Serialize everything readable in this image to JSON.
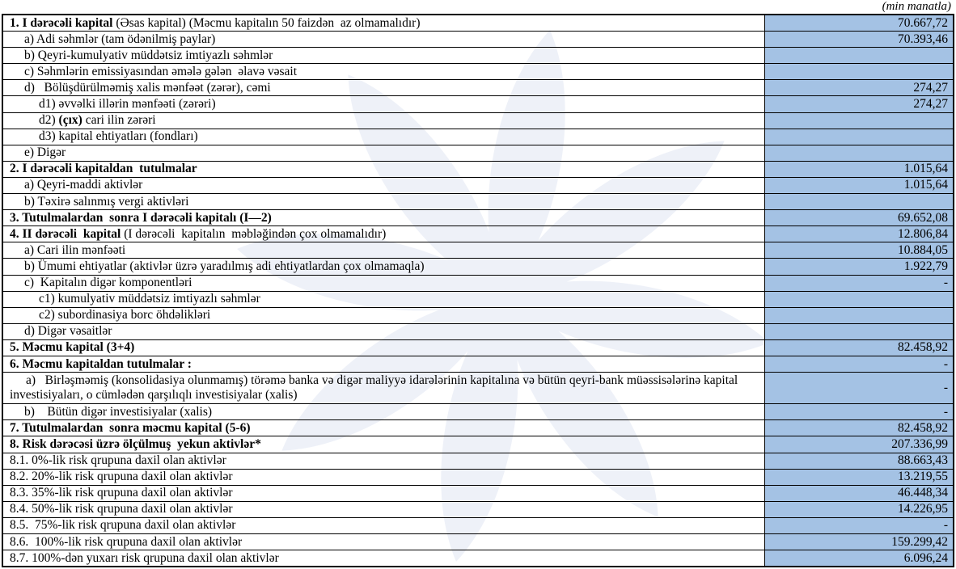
{
  "header": {
    "unit_note": "(min manatla)"
  },
  "colors": {
    "value_cell_bg": "#a4c2e4",
    "watermark": "#eef1f8",
    "border": "#000000"
  },
  "watermark": {
    "icon": "eight-petal-flower"
  },
  "table": {
    "rows": [
      {
        "indent": 0,
        "tall": false,
        "value": "70.667,72",
        "parts": [
          {
            "bold": true,
            "text": "1. I dərəcəli kapital "
          },
          {
            "bold": false,
            "text": "(Əsas kapital) (Məcmu kapitalın 50 faizdən  az olmamalıdır)"
          }
        ]
      },
      {
        "indent": 1,
        "tall": false,
        "value": "70.393,46",
        "parts": [
          {
            "bold": false,
            "text": "a) Adi səhmlər (tam ödənilmiş paylar)"
          }
        ]
      },
      {
        "indent": 1,
        "tall": false,
        "value": "",
        "parts": [
          {
            "bold": false,
            "text": "b) Qeyri-kumulyativ müddətsiz imtiyazlı səhmlər"
          }
        ]
      },
      {
        "indent": 1,
        "tall": false,
        "value": "",
        "parts": [
          {
            "bold": false,
            "text": "c) Səhmlərin emissiyasından əmələ gələn  əlavə vəsait"
          }
        ]
      },
      {
        "indent": 1,
        "tall": false,
        "value": "274,27",
        "parts": [
          {
            "bold": false,
            "text": "d)   Bölüşdürülməmiş xalis mənfəət (zərər), cəmi"
          }
        ]
      },
      {
        "indent": 2,
        "tall": false,
        "value": "274,27",
        "parts": [
          {
            "bold": false,
            "text": "d1) əvvəlki illərin mənfəəti (zərəri)"
          }
        ]
      },
      {
        "indent": 2,
        "tall": false,
        "value": "",
        "parts": [
          {
            "bold": false,
            "text": "d2) "
          },
          {
            "bold": true,
            "text": "(çıx)"
          },
          {
            "bold": false,
            "text": " cari ilin zərəri"
          }
        ]
      },
      {
        "indent": 2,
        "tall": false,
        "value": "",
        "parts": [
          {
            "bold": false,
            "text": "d3) kapital ehtiyatları (fondları)"
          }
        ]
      },
      {
        "indent": 1,
        "tall": false,
        "value": "",
        "parts": [
          {
            "bold": false,
            "text": "e) Digər"
          }
        ]
      },
      {
        "indent": 0,
        "tall": false,
        "value": "1.015,64",
        "parts": [
          {
            "bold": true,
            "text": "2. I dərəcəli kapitaldan  tutulmalar"
          }
        ]
      },
      {
        "indent": 1,
        "tall": false,
        "value": "1.015,64",
        "parts": [
          {
            "bold": false,
            "text": "a) Qeyri-maddi aktivlər"
          }
        ]
      },
      {
        "indent": 1,
        "tall": false,
        "value": "",
        "parts": [
          {
            "bold": false,
            "text": "b) Təxirə salınmış vergi aktivləri"
          }
        ]
      },
      {
        "indent": 0,
        "tall": false,
        "value": "69.652,08",
        "parts": [
          {
            "bold": true,
            "text": "3. Tutulmalardan  sonra I dərəcəli kapitalı (I—2)"
          }
        ]
      },
      {
        "indent": 0,
        "tall": false,
        "value": "12.806,84",
        "parts": [
          {
            "bold": true,
            "text": "4. II dərəcəli  kapital "
          },
          {
            "bold": false,
            "text": "(I dərəcəli  kapitalın  məbləğindən çox olmamalıdır)"
          }
        ]
      },
      {
        "indent": 1,
        "tall": false,
        "value": "10.884,05",
        "parts": [
          {
            "bold": false,
            "text": "a) Cari ilin mənfəəti"
          }
        ]
      },
      {
        "indent": 1,
        "tall": false,
        "value": "1.922,79",
        "parts": [
          {
            "bold": false,
            "text": "b) Ümumi ehtiyatlar (aktivlər üzrə yaradılmış adi ehtiyatlardan çox olmamaqla)"
          }
        ]
      },
      {
        "indent": 1,
        "tall": false,
        "value": "-",
        "parts": [
          {
            "bold": false,
            "text": "c)  Kapitalın digər komponentləri"
          }
        ]
      },
      {
        "indent": 2,
        "tall": false,
        "value": "",
        "parts": [
          {
            "bold": false,
            "text": "c1) kumulyativ müddətsiz imtiyazlı səhmlər"
          }
        ]
      },
      {
        "indent": 2,
        "tall": false,
        "value": "",
        "parts": [
          {
            "bold": false,
            "text": "c2) subordinasiya borc öhdəlikləri"
          }
        ]
      },
      {
        "indent": 1,
        "tall": false,
        "value": "",
        "parts": [
          {
            "bold": false,
            "text": "d) Digər vəsaitlər"
          }
        ]
      },
      {
        "indent": 0,
        "tall": false,
        "value": "82.458,92",
        "parts": [
          {
            "bold": true,
            "text": "5. Məcmu kapital (3+4)"
          }
        ]
      },
      {
        "indent": 0,
        "tall": false,
        "value": "-",
        "parts": [
          {
            "bold": true,
            "text": "6. Məcmu kapitaldan tutulmalar :"
          }
        ]
      },
      {
        "indent": 0,
        "tall": true,
        "value": "-",
        "hang": true,
        "parts": [
          {
            "bold": false,
            "text": "a)   Birləşməmiş (konsolidasiya olunmamış) törəmə banka və digər maliyyə idarələrinin kapitalına və bütün qeyri-bank müəssisələrinə kapital investisiyaları, o cümlədən qarşılıqlı investisiyalar (xalis)"
          }
        ]
      },
      {
        "indent": 1,
        "tall": false,
        "value": "-",
        "parts": [
          {
            "bold": false,
            "text": "b)    Bütün digər investisiyalar (xalis)"
          }
        ]
      },
      {
        "indent": 0,
        "tall": false,
        "value": "82.458,92",
        "parts": [
          {
            "bold": true,
            "text": "7. Tutulmalardan  sonra məcmu kapital (5-6)"
          }
        ]
      },
      {
        "indent": 0,
        "tall": false,
        "value": "207.336,99",
        "parts": [
          {
            "bold": true,
            "text": "8. Risk dərəcəsi üzrə ölçülmuş  yekun aktivlər*"
          }
        ]
      },
      {
        "indent": 0,
        "tall": false,
        "value": "88.663,43",
        "parts": [
          {
            "bold": false,
            "text": "8.1. 0%-lik risk qrupuna daxil olan aktivlər"
          }
        ]
      },
      {
        "indent": 0,
        "tall": false,
        "value": "13.219,55",
        "parts": [
          {
            "bold": false,
            "text": "8.2. 20%-lik risk qrupuna daxil olan aktivlər"
          }
        ]
      },
      {
        "indent": 0,
        "tall": false,
        "value": "46.448,34",
        "parts": [
          {
            "bold": false,
            "text": "8.3. 35%-lik risk qrupuna daxil olan aktivlər"
          }
        ]
      },
      {
        "indent": 0,
        "tall": false,
        "value": "14.226,95",
        "parts": [
          {
            "bold": false,
            "text": "8.4. 50%-lik risk qrupuna daxil olan aktivlər"
          }
        ]
      },
      {
        "indent": 0,
        "tall": false,
        "value": "-",
        "parts": [
          {
            "bold": false,
            "text": "8.5.  75%-lik risk qrupuna daxil olan aktivlər"
          }
        ]
      },
      {
        "indent": 0,
        "tall": false,
        "value": "159.299,42",
        "parts": [
          {
            "bold": false,
            "text": "8.6.  100%-lik risk qrupuna daxil olan aktivlər"
          }
        ]
      },
      {
        "indent": 0,
        "tall": false,
        "value": "6.096,24",
        "parts": [
          {
            "bold": false,
            "text": "8.7. 100%-dən yuxarı risk qrupuna daxil olan aktivlər"
          }
        ]
      }
    ]
  }
}
